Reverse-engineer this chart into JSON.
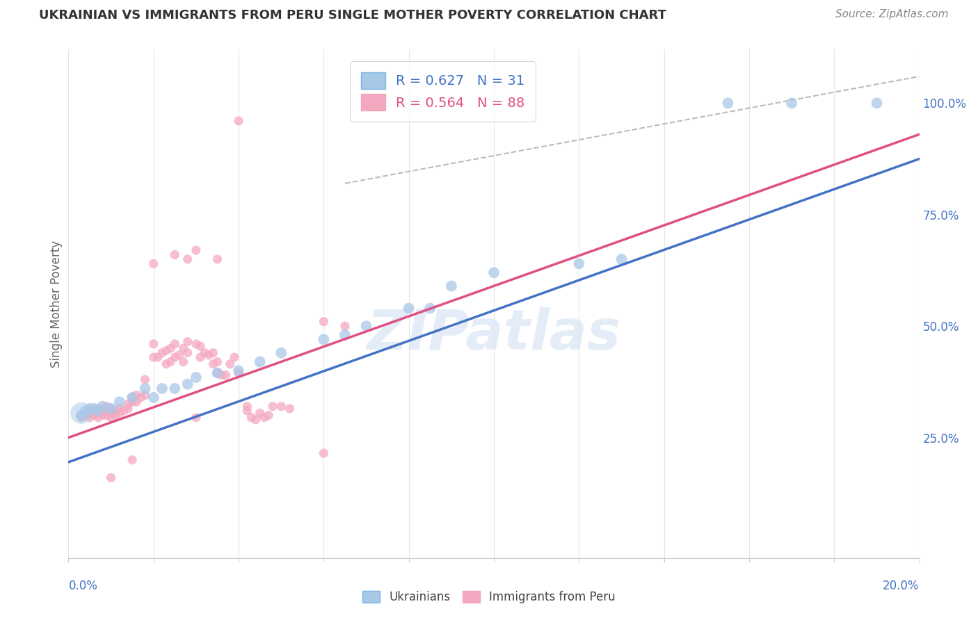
{
  "title": "UKRAINIAN VS IMMIGRANTS FROM PERU SINGLE MOTHER POVERTY CORRELATION CHART",
  "source": "Source: ZipAtlas.com",
  "ylabel": "Single Mother Poverty",
  "ytick_labels": [
    "25.0%",
    "50.0%",
    "75.0%",
    "100.0%"
  ],
  "ytick_values": [
    0.25,
    0.5,
    0.75,
    1.0
  ],
  "xlim": [
    0.0,
    0.2
  ],
  "ylim": [
    -0.02,
    1.12
  ],
  "blue_color": "#a8c8e8",
  "pink_color": "#f4a8c0",
  "blue_line_color": "#4472c4",
  "pink_line_color": "#e05080",
  "blue_scatter": [
    [
      0.003,
      0.3
    ],
    [
      0.004,
      0.31
    ],
    [
      0.005,
      0.315
    ],
    [
      0.006,
      0.315
    ],
    [
      0.007,
      0.31
    ],
    [
      0.008,
      0.32
    ],
    [
      0.01,
      0.315
    ],
    [
      0.012,
      0.33
    ],
    [
      0.015,
      0.34
    ],
    [
      0.018,
      0.36
    ],
    [
      0.02,
      0.34
    ],
    [
      0.022,
      0.36
    ],
    [
      0.025,
      0.36
    ],
    [
      0.028,
      0.37
    ],
    [
      0.03,
      0.385
    ],
    [
      0.035,
      0.395
    ],
    [
      0.04,
      0.4
    ],
    [
      0.045,
      0.42
    ],
    [
      0.05,
      0.44
    ],
    [
      0.06,
      0.47
    ],
    [
      0.065,
      0.48
    ],
    [
      0.07,
      0.5
    ],
    [
      0.08,
      0.54
    ],
    [
      0.085,
      0.54
    ],
    [
      0.09,
      0.59
    ],
    [
      0.1,
      0.62
    ],
    [
      0.12,
      0.64
    ],
    [
      0.13,
      0.65
    ],
    [
      0.155,
      1.0
    ],
    [
      0.17,
      1.0
    ],
    [
      0.19,
      1.0
    ]
  ],
  "pink_scatter": [
    [
      0.003,
      0.295
    ],
    [
      0.004,
      0.3
    ],
    [
      0.005,
      0.295
    ],
    [
      0.005,
      0.305
    ],
    [
      0.006,
      0.3
    ],
    [
      0.006,
      0.31
    ],
    [
      0.007,
      0.295
    ],
    [
      0.007,
      0.305
    ],
    [
      0.007,
      0.315
    ],
    [
      0.008,
      0.3
    ],
    [
      0.008,
      0.31
    ],
    [
      0.009,
      0.3
    ],
    [
      0.009,
      0.31
    ],
    [
      0.009,
      0.32
    ],
    [
      0.01,
      0.295
    ],
    [
      0.01,
      0.305
    ],
    [
      0.01,
      0.315
    ],
    [
      0.011,
      0.3
    ],
    [
      0.011,
      0.31
    ],
    [
      0.012,
      0.305
    ],
    [
      0.012,
      0.315
    ],
    [
      0.013,
      0.31
    ],
    [
      0.014,
      0.315
    ],
    [
      0.014,
      0.325
    ],
    [
      0.015,
      0.33
    ],
    [
      0.015,
      0.34
    ],
    [
      0.016,
      0.33
    ],
    [
      0.016,
      0.345
    ],
    [
      0.017,
      0.34
    ],
    [
      0.018,
      0.345
    ],
    [
      0.018,
      0.38
    ],
    [
      0.02,
      0.43
    ],
    [
      0.02,
      0.46
    ],
    [
      0.021,
      0.43
    ],
    [
      0.022,
      0.44
    ],
    [
      0.023,
      0.415
    ],
    [
      0.023,
      0.445
    ],
    [
      0.024,
      0.42
    ],
    [
      0.024,
      0.45
    ],
    [
      0.025,
      0.43
    ],
    [
      0.025,
      0.46
    ],
    [
      0.026,
      0.435
    ],
    [
      0.027,
      0.42
    ],
    [
      0.027,
      0.45
    ],
    [
      0.028,
      0.44
    ],
    [
      0.028,
      0.465
    ],
    [
      0.03,
      0.46
    ],
    [
      0.03,
      0.295
    ],
    [
      0.031,
      0.43
    ],
    [
      0.031,
      0.455
    ],
    [
      0.032,
      0.44
    ],
    [
      0.033,
      0.435
    ],
    [
      0.034,
      0.415
    ],
    [
      0.034,
      0.44
    ],
    [
      0.035,
      0.395
    ],
    [
      0.035,
      0.42
    ],
    [
      0.036,
      0.39
    ],
    [
      0.037,
      0.39
    ],
    [
      0.038,
      0.415
    ],
    [
      0.039,
      0.43
    ],
    [
      0.04,
      0.395
    ],
    [
      0.042,
      0.32
    ],
    [
      0.042,
      0.31
    ],
    [
      0.043,
      0.295
    ],
    [
      0.044,
      0.29
    ],
    [
      0.045,
      0.305
    ],
    [
      0.046,
      0.295
    ],
    [
      0.047,
      0.3
    ],
    [
      0.048,
      0.32
    ],
    [
      0.05,
      0.32
    ],
    [
      0.052,
      0.315
    ],
    [
      0.02,
      0.64
    ],
    [
      0.025,
      0.66
    ],
    [
      0.028,
      0.65
    ],
    [
      0.03,
      0.67
    ],
    [
      0.035,
      0.65
    ],
    [
      0.06,
      0.51
    ],
    [
      0.065,
      0.5
    ],
    [
      0.06,
      0.215
    ],
    [
      0.01,
      0.16
    ],
    [
      0.015,
      0.2
    ],
    [
      0.04,
      0.96
    ]
  ],
  "blue_line": [
    [
      0.0,
      0.195
    ],
    [
      0.2,
      0.875
    ]
  ],
  "pink_line": [
    [
      0.0,
      0.25
    ],
    [
      0.2,
      0.93
    ]
  ],
  "diag_line": [
    [
      0.065,
      0.82
    ],
    [
      0.2,
      1.06
    ]
  ],
  "watermark": "ZIPatlas",
  "background_color": "#ffffff",
  "grid_color": "#e5e5e5"
}
